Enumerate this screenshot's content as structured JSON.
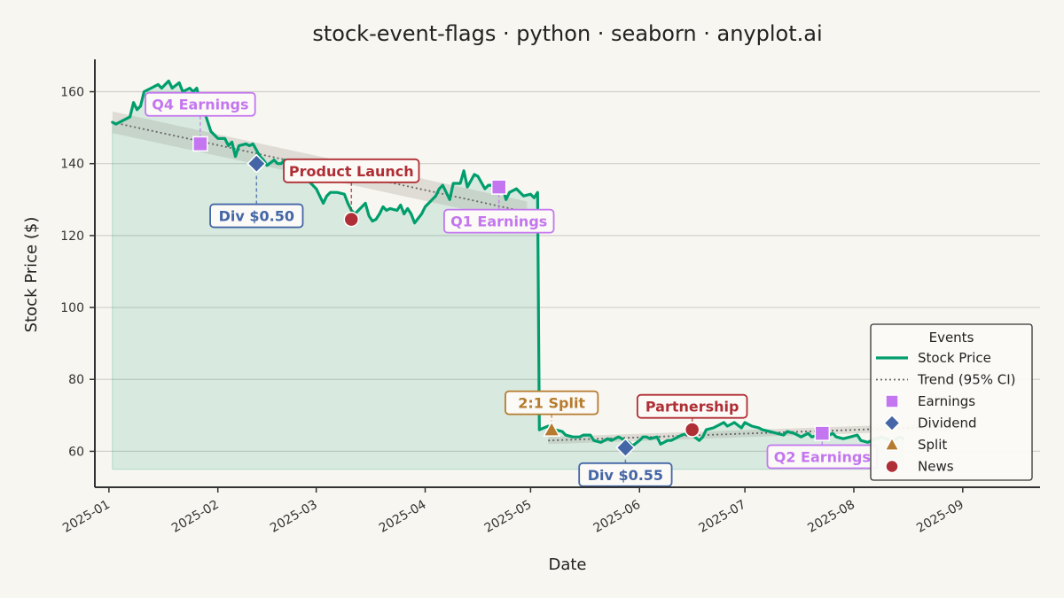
{
  "chart_data": {
    "type": "line",
    "title": "stock-event-flags · python · seaborn · anyplot.ai",
    "xlabel": "Date",
    "ylabel": "Stock Price ($)",
    "xlim": [
      "2024-12-28",
      "2025-09-23"
    ],
    "ylim": [
      50,
      169
    ],
    "xticks": [
      "2025-01",
      "2025-02",
      "2025-03",
      "2025-04",
      "2025-05",
      "2025-06",
      "2025-07",
      "2025-08",
      "2025-09"
    ],
    "yticks": [
      60,
      80,
      100,
      120,
      140,
      160
    ],
    "grid": "horizontal",
    "fill_baseline": 55,
    "series": [
      {
        "name": "Stock Price",
        "color": "#009e6d",
        "points": [
          [
            "2025-01-02",
            151.5
          ],
          [
            "2025-01-03",
            151.0
          ],
          [
            "2025-01-05",
            152.0
          ],
          [
            "2025-01-07",
            153.0
          ],
          [
            "2025-01-08",
            157.0
          ],
          [
            "2025-01-09",
            155.0
          ],
          [
            "2025-01-10",
            156.0
          ],
          [
            "2025-01-11",
            160.0
          ],
          [
            "2025-01-13",
            161.0
          ],
          [
            "2025-01-15",
            162.0
          ],
          [
            "2025-01-16",
            161.0
          ],
          [
            "2025-01-18",
            163.0
          ],
          [
            "2025-01-19",
            161.0
          ],
          [
            "2025-01-21",
            162.5
          ],
          [
            "2025-01-22",
            160.0
          ],
          [
            "2025-01-24",
            161.0
          ],
          [
            "2025-01-25",
            160.0
          ],
          [
            "2025-01-26",
            161.0
          ],
          [
            "2025-01-27",
            157.0
          ],
          [
            "2025-01-28",
            155.0
          ],
          [
            "2025-01-29",
            152.0
          ],
          [
            "2025-01-30",
            149.0
          ],
          [
            "2025-02-01",
            147.0
          ],
          [
            "2025-02-03",
            147.0
          ],
          [
            "2025-02-04",
            145.0
          ],
          [
            "2025-02-05",
            146.0
          ],
          [
            "2025-02-06",
            142.0
          ],
          [
            "2025-02-07",
            145.0
          ],
          [
            "2025-02-09",
            145.5
          ],
          [
            "2025-02-10",
            145.0
          ],
          [
            "2025-02-11",
            145.5
          ],
          [
            "2025-02-13",
            142.0
          ],
          [
            "2025-02-14",
            141.0
          ],
          [
            "2025-02-15",
            139.5
          ],
          [
            "2025-02-17",
            141.0
          ],
          [
            "2025-02-18",
            140.0
          ],
          [
            "2025-02-19",
            140.0
          ],
          [
            "2025-02-20",
            141.0
          ],
          [
            "2025-02-21",
            140.0
          ],
          [
            "2025-02-22",
            138.0
          ],
          [
            "2025-02-24",
            140.5
          ],
          [
            "2025-02-25",
            137.5
          ],
          [
            "2025-02-26",
            138.0
          ],
          [
            "2025-02-27",
            135.0
          ],
          [
            "2025-03-01",
            133.0
          ],
          [
            "2025-03-02",
            131.0
          ],
          [
            "2025-03-03",
            129.0
          ],
          [
            "2025-03-04",
            131.0
          ],
          [
            "2025-03-05",
            132.0
          ],
          [
            "2025-03-07",
            132.0
          ],
          [
            "2025-03-09",
            131.5
          ],
          [
            "2025-03-10",
            129.0
          ],
          [
            "2025-03-11",
            127.0
          ],
          [
            "2025-03-12",
            126.0
          ],
          [
            "2025-03-14",
            128.0
          ],
          [
            "2025-03-15",
            129.0
          ],
          [
            "2025-03-16",
            125.5
          ],
          [
            "2025-03-17",
            124.0
          ],
          [
            "2025-03-18",
            124.5
          ],
          [
            "2025-03-19",
            126.0
          ],
          [
            "2025-03-20",
            128.0
          ],
          [
            "2025-03-21",
            127.0
          ],
          [
            "2025-03-22",
            127.5
          ],
          [
            "2025-03-24",
            127.0
          ],
          [
            "2025-03-25",
            128.5
          ],
          [
            "2025-03-26",
            126.0
          ],
          [
            "2025-03-27",
            127.5
          ],
          [
            "2025-03-28",
            126.0
          ],
          [
            "2025-03-29",
            123.5
          ],
          [
            "2025-03-31",
            126.0
          ],
          [
            "2025-04-01",
            128.0
          ],
          [
            "2025-04-02",
            129.0
          ],
          [
            "2025-04-03",
            130.0
          ],
          [
            "2025-04-04",
            131.0
          ],
          [
            "2025-04-05",
            133.0
          ],
          [
            "2025-04-06",
            134.0
          ],
          [
            "2025-04-07",
            132.0
          ],
          [
            "2025-04-08",
            130.0
          ],
          [
            "2025-04-09",
            134.5
          ],
          [
            "2025-04-11",
            134.5
          ],
          [
            "2025-04-12",
            138.0
          ],
          [
            "2025-04-13",
            133.5
          ],
          [
            "2025-04-15",
            137.0
          ],
          [
            "2025-04-16",
            136.5
          ],
          [
            "2025-04-18",
            133.0
          ],
          [
            "2025-04-19",
            134.0
          ],
          [
            "2025-04-21",
            134.0
          ],
          [
            "2025-04-23",
            133.5
          ],
          [
            "2025-04-24",
            130.0
          ],
          [
            "2025-04-25",
            132.0
          ],
          [
            "2025-04-27",
            133.0
          ],
          [
            "2025-04-29",
            131.0
          ],
          [
            "2025-05-01",
            131.5
          ],
          [
            "2025-05-02",
            130.5
          ],
          [
            "2025-05-03",
            132.0
          ],
          [
            "2025-05-03.5",
            66.0
          ],
          [
            "2025-05-06",
            67.0
          ],
          [
            "2025-05-07",
            66.5
          ],
          [
            "2025-05-08",
            66.0
          ],
          [
            "2025-05-10",
            65.5
          ],
          [
            "2025-05-11",
            64.5
          ],
          [
            "2025-05-13",
            64.0
          ],
          [
            "2025-05-15",
            64.0
          ],
          [
            "2025-05-16",
            64.5
          ],
          [
            "2025-05-18",
            64.5
          ],
          [
            "2025-05-19",
            63.0
          ],
          [
            "2025-05-21",
            62.5
          ],
          [
            "2025-05-23",
            63.5
          ],
          [
            "2025-05-24",
            63.0
          ],
          [
            "2025-05-26",
            64.0
          ],
          [
            "2025-05-27",
            63.5
          ],
          [
            "2025-05-29",
            62.5
          ],
          [
            "2025-05-30",
            61.5
          ],
          [
            "2025-06-01",
            63.0
          ],
          [
            "2025-06-02",
            64.0
          ],
          [
            "2025-06-03",
            64.0
          ],
          [
            "2025-06-04",
            63.5
          ],
          [
            "2025-06-06",
            64.0
          ],
          [
            "2025-06-07",
            62.0
          ],
          [
            "2025-06-09",
            63.0
          ],
          [
            "2025-06-10",
            63.0
          ],
          [
            "2025-06-11",
            63.5
          ],
          [
            "2025-06-13",
            64.5
          ],
          [
            "2025-06-15",
            65.0
          ],
          [
            "2025-06-16",
            64.5
          ],
          [
            "2025-06-18",
            63.0
          ],
          [
            "2025-06-19",
            64.0
          ],
          [
            "2025-06-20",
            66.0
          ],
          [
            "2025-06-22",
            66.5
          ],
          [
            "2025-06-23",
            67.0
          ],
          [
            "2025-06-25",
            68.0
          ],
          [
            "2025-06-26",
            67.0
          ],
          [
            "2025-06-27",
            67.5
          ],
          [
            "2025-06-28",
            68.0
          ],
          [
            "2025-06-30",
            66.5
          ],
          [
            "2025-07-01",
            68.0
          ],
          [
            "2025-07-03",
            67.0
          ],
          [
            "2025-07-05",
            66.5
          ],
          [
            "2025-07-06",
            66.0
          ],
          [
            "2025-07-08",
            65.5
          ],
          [
            "2025-07-10",
            65.0
          ],
          [
            "2025-07-12",
            64.5
          ],
          [
            "2025-07-13",
            65.5
          ],
          [
            "2025-07-15",
            65.0
          ],
          [
            "2025-07-17",
            64.0
          ],
          [
            "2025-07-19",
            65.0
          ],
          [
            "2025-07-20",
            64.0
          ],
          [
            "2025-07-22",
            64.5
          ],
          [
            "2025-07-24",
            64.0
          ],
          [
            "2025-07-26",
            65.0
          ],
          [
            "2025-07-27",
            64.0
          ],
          [
            "2025-07-29",
            63.5
          ],
          [
            "2025-07-31",
            64.0
          ],
          [
            "2025-08-02",
            64.5
          ],
          [
            "2025-08-03",
            63.0
          ],
          [
            "2025-08-05",
            62.5
          ],
          [
            "2025-08-07",
            63.5
          ],
          [
            "2025-08-09",
            64.0
          ],
          [
            "2025-08-10",
            63.5
          ],
          [
            "2025-08-12",
            63.0
          ],
          [
            "2025-08-14",
            64.0
          ],
          [
            "2025-08-15",
            63.5
          ]
        ]
      },
      {
        "name": "Trend (95% CI)",
        "color": "#666666",
        "segments": [
          {
            "start": [
              "2025-01-02",
              151.5
            ],
            "end": [
              "2025-04-30",
              126.5
            ],
            "ci": 3.0
          },
          {
            "start": [
              "2025-05-06",
              63.0
            ],
            "end": [
              "2025-08-31",
              67.0
            ],
            "ci": 1.0
          }
        ]
      }
    ],
    "events": [
      {
        "date": "2025-01-27",
        "price": 145.5,
        "category": "Earnings",
        "label": "Q4 Earnings",
        "label_price": 156.5,
        "position": "above"
      },
      {
        "date": "2025-02-12",
        "price": 140.0,
        "category": "Dividend",
        "label": "Div $0.50",
        "label_price": 125.5,
        "position": "below"
      },
      {
        "date": "2025-03-11",
        "price": 124.5,
        "category": "News",
        "label": "Product Launch",
        "label_price": 138.0,
        "position": "above"
      },
      {
        "date": "2025-04-22",
        "price": 133.5,
        "category": "Earnings",
        "label": "Q1 Earnings",
        "label_price": 124.0,
        "position": "below"
      },
      {
        "date": "2025-05-07",
        "price": 66.0,
        "category": "Split",
        "label": "2:1 Split",
        "label_price": 73.5,
        "position": "above"
      },
      {
        "date": "2025-05-28",
        "price": 61.0,
        "category": "Dividend",
        "label": "Div $0.55",
        "label_price": 53.5,
        "position": "below"
      },
      {
        "date": "2025-06-16",
        "price": 66.0,
        "category": "News",
        "label": "Partnership",
        "label_price": 72.5,
        "position": "above"
      },
      {
        "date": "2025-07-23",
        "price": 65.0,
        "category": "Earnings",
        "label": "Q2 Earnings",
        "label_price": 58.5,
        "position": "below"
      }
    ],
    "categories": {
      "Earnings": {
        "color": "#c476f0",
        "marker": "square"
      },
      "Dividend": {
        "color": "#4566a6",
        "marker": "diamond"
      },
      "Split": {
        "color": "#b67b2e",
        "marker": "triangle"
      },
      "News": {
        "color": "#b02e35",
        "marker": "circle"
      }
    },
    "legend": {
      "title": "Events",
      "position": "lower right",
      "entries": [
        "Stock Price",
        "Trend (95% CI)",
        "Earnings",
        "Dividend",
        "Split",
        "News"
      ]
    }
  }
}
